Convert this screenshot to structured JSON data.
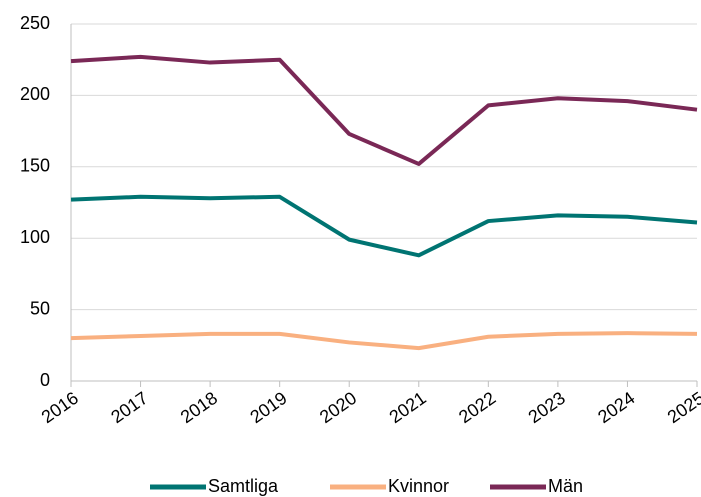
{
  "chart_data": {
    "type": "line",
    "categories": [
      "2016",
      "2017",
      "2018",
      "2019",
      "2020",
      "2021",
      "2022",
      "2023",
      "2024",
      "2025"
    ],
    "series": [
      {
        "name": "Samtliga",
        "color": "#007472",
        "values": [
          127,
          129,
          128,
          129,
          99,
          88,
          112,
          116,
          115,
          111
        ]
      },
      {
        "name": "Kvinnor",
        "color": "#f9b080",
        "values": [
          30,
          31.5,
          33,
          33,
          27,
          23,
          31,
          33,
          33.5,
          33
        ]
      },
      {
        "name": "Män",
        "color": "#7a2856",
        "values": [
          224,
          227,
          223,
          225,
          173,
          152,
          193,
          198,
          196,
          190
        ]
      }
    ],
    "ylim": [
      0,
      250
    ],
    "yticks": [
      0,
      50,
      100,
      150,
      200,
      250
    ],
    "grid": true,
    "legend": "bottom"
  }
}
